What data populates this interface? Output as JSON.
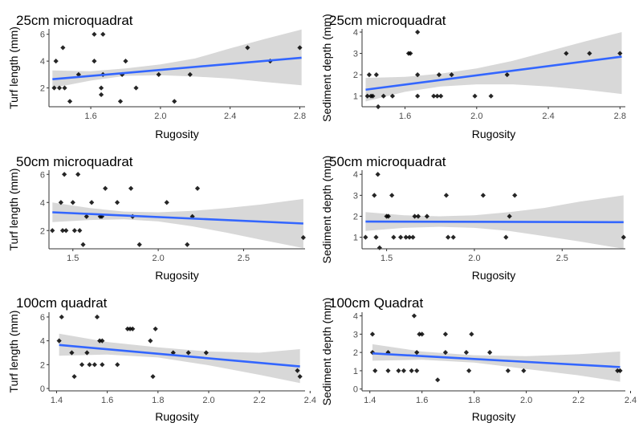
{
  "colors": {
    "points": "#000000",
    "line": "#3366FF",
    "band": "#d6d6d6",
    "axis": "#333333"
  },
  "chart_data": [
    {
      "type": "scatter",
      "title": "25cm microquadrat",
      "xlabel": "Rugosity",
      "ylabel": "Turf length (mm)",
      "xlim": [
        1.36,
        2.83
      ],
      "ylim": [
        0.6,
        6.4
      ],
      "xticks": [
        1.6,
        2.0,
        2.4,
        2.8
      ],
      "xtick_labels": [
        "1.6",
        "2.0",
        "2.4",
        "2.8"
      ],
      "yticks": [
        2,
        4,
        6
      ],
      "ytick_labels": [
        "2",
        "4",
        "6"
      ],
      "points": [
        {
          "x": 1.39,
          "y": 2
        },
        {
          "x": 1.4,
          "y": 4
        },
        {
          "x": 1.42,
          "y": 2
        },
        {
          "x": 1.44,
          "y": 5
        },
        {
          "x": 1.45,
          "y": 2
        },
        {
          "x": 1.48,
          "y": 1
        },
        {
          "x": 1.53,
          "y": 3
        },
        {
          "x": 1.62,
          "y": 6
        },
        {
          "x": 1.62,
          "y": 4
        },
        {
          "x": 1.66,
          "y": 2
        },
        {
          "x": 1.66,
          "y": 1.5
        },
        {
          "x": 1.67,
          "y": 3
        },
        {
          "x": 1.67,
          "y": 6
        },
        {
          "x": 1.77,
          "y": 1
        },
        {
          "x": 1.78,
          "y": 3
        },
        {
          "x": 1.8,
          "y": 4
        },
        {
          "x": 1.86,
          "y": 2
        },
        {
          "x": 1.99,
          "y": 3
        },
        {
          "x": 2.08,
          "y": 1
        },
        {
          "x": 2.17,
          "y": 3
        },
        {
          "x": 2.5,
          "y": 5
        },
        {
          "x": 2.63,
          "y": 4
        },
        {
          "x": 2.8,
          "y": 5
        }
      ],
      "fit": {
        "x": [
          1.38,
          2.81
        ],
        "y": [
          2.65,
          4.25
        ]
      },
      "ci_lower": [
        [
          1.38,
          2.0
        ],
        [
          1.6,
          2.55
        ],
        [
          1.8,
          2.9
        ],
        [
          2.0,
          2.95
        ],
        [
          2.2,
          2.85
        ],
        [
          2.4,
          2.7
        ],
        [
          2.6,
          2.45
        ],
        [
          2.81,
          2.2
        ]
      ],
      "ci_upper": [
        [
          1.38,
          3.3
        ],
        [
          1.6,
          3.25
        ],
        [
          1.8,
          3.45
        ],
        [
          2.0,
          3.75
        ],
        [
          2.2,
          4.2
        ],
        [
          2.4,
          4.95
        ],
        [
          2.6,
          5.65
        ],
        [
          2.81,
          6.35
        ]
      ]
    },
    {
      "type": "scatter",
      "title": "25cm microquadrat",
      "xlabel": "Rugosity",
      "ylabel": "Sediment depth (mm)",
      "xlim": [
        1.36,
        2.83
      ],
      "ylim": [
        0.5,
        4.15
      ],
      "xticks": [
        1.6,
        2.0,
        2.4,
        2.8
      ],
      "xtick_labels": [
        "1.6",
        "2.0",
        "2.4",
        "2.8"
      ],
      "yticks": [
        1,
        2,
        3,
        4
      ],
      "ytick_labels": [
        "1",
        "2",
        "3",
        "4"
      ],
      "points": [
        {
          "x": 1.39,
          "y": 1
        },
        {
          "x": 1.4,
          "y": 2
        },
        {
          "x": 1.41,
          "y": 1
        },
        {
          "x": 1.42,
          "y": 1
        },
        {
          "x": 1.44,
          "y": 2
        },
        {
          "x": 1.45,
          "y": 0.5
        },
        {
          "x": 1.48,
          "y": 1
        },
        {
          "x": 1.53,
          "y": 1
        },
        {
          "x": 1.62,
          "y": 3
        },
        {
          "x": 1.63,
          "y": 3
        },
        {
          "x": 1.67,
          "y": 2
        },
        {
          "x": 1.67,
          "y": 1
        },
        {
          "x": 1.67,
          "y": 4
        },
        {
          "x": 1.76,
          "y": 1
        },
        {
          "x": 1.78,
          "y": 1
        },
        {
          "x": 1.79,
          "y": 2
        },
        {
          "x": 1.8,
          "y": 1
        },
        {
          "x": 1.86,
          "y": 2
        },
        {
          "x": 1.99,
          "y": 1
        },
        {
          "x": 2.08,
          "y": 1
        },
        {
          "x": 2.17,
          "y": 2
        },
        {
          "x": 2.5,
          "y": 3
        },
        {
          "x": 2.63,
          "y": 3
        },
        {
          "x": 2.8,
          "y": 3
        }
      ],
      "fit": {
        "x": [
          1.38,
          2.81
        ],
        "y": [
          1.3,
          2.85
        ]
      },
      "ci_lower": [
        [
          1.38,
          0.75
        ],
        [
          1.6,
          1.2
        ],
        [
          1.8,
          1.45
        ],
        [
          2.0,
          1.55
        ],
        [
          2.2,
          1.55
        ],
        [
          2.4,
          1.45
        ],
        [
          2.6,
          1.3
        ],
        [
          2.81,
          1.1
        ]
      ],
      "ci_upper": [
        [
          1.38,
          1.85
        ],
        [
          1.6,
          1.9
        ],
        [
          1.8,
          2.05
        ],
        [
          2.0,
          2.3
        ],
        [
          2.2,
          2.65
        ],
        [
          2.4,
          3.1
        ],
        [
          2.6,
          3.55
        ],
        [
          2.81,
          4.0
        ]
      ]
    },
    {
      "type": "scatter",
      "title": "50cm microquadrat",
      "xlabel": "Rugosity",
      "ylabel": "Turf length (mm)",
      "xlim": [
        1.36,
        2.86
      ],
      "ylim": [
        0.7,
        6.3
      ],
      "xticks": [
        1.5,
        2.0,
        2.5
      ],
      "xtick_labels": [
        "1.5",
        "2.0",
        "2.5"
      ],
      "yticks": [
        2,
        4,
        6
      ],
      "ytick_labels": [
        "2",
        "4",
        "6"
      ],
      "points": [
        {
          "x": 1.38,
          "y": 2
        },
        {
          "x": 1.43,
          "y": 4
        },
        {
          "x": 1.44,
          "y": 2
        },
        {
          "x": 1.45,
          "y": 6
        },
        {
          "x": 1.46,
          "y": 2
        },
        {
          "x": 1.5,
          "y": 4
        },
        {
          "x": 1.51,
          "y": 2
        },
        {
          "x": 1.53,
          "y": 6
        },
        {
          "x": 1.54,
          "y": 2
        },
        {
          "x": 1.56,
          "y": 1
        },
        {
          "x": 1.58,
          "y": 3
        },
        {
          "x": 1.61,
          "y": 4
        },
        {
          "x": 1.66,
          "y": 3
        },
        {
          "x": 1.67,
          "y": 3
        },
        {
          "x": 1.69,
          "y": 5
        },
        {
          "x": 1.76,
          "y": 4
        },
        {
          "x": 1.84,
          "y": 5
        },
        {
          "x": 1.85,
          "y": 3
        },
        {
          "x": 1.89,
          "y": 1
        },
        {
          "x": 2.05,
          "y": 4
        },
        {
          "x": 2.17,
          "y": 1
        },
        {
          "x": 2.2,
          "y": 3
        },
        {
          "x": 2.23,
          "y": 5
        },
        {
          "x": 2.85,
          "y": 1.5
        }
      ],
      "fit": {
        "x": [
          1.38,
          2.85
        ],
        "y": [
          3.3,
          2.5
        ]
      },
      "ci_lower": [
        [
          1.38,
          2.6
        ],
        [
          1.6,
          2.75
        ],
        [
          1.8,
          2.8
        ],
        [
          2.0,
          2.65
        ],
        [
          2.2,
          2.3
        ],
        [
          2.4,
          1.85
        ],
        [
          2.6,
          1.35
        ],
        [
          2.85,
          0.75
        ]
      ],
      "ci_upper": [
        [
          1.38,
          4.0
        ],
        [
          1.6,
          3.6
        ],
        [
          1.8,
          3.35
        ],
        [
          2.0,
          3.3
        ],
        [
          2.2,
          3.4
        ],
        [
          2.4,
          3.6
        ],
        [
          2.6,
          3.85
        ],
        [
          2.85,
          4.25
        ]
      ]
    },
    {
      "type": "scatter",
      "title": "50cm microquadrat",
      "xlabel": "Rugosity",
      "ylabel": "Sediment depth (mm)",
      "xlim": [
        1.36,
        2.86
      ],
      "ylim": [
        0.45,
        4.2
      ],
      "xticks": [
        1.5,
        2.0,
        2.5
      ],
      "xtick_labels": [
        "1.5",
        "2.0",
        "2.5"
      ],
      "yticks": [
        1,
        2,
        3,
        4
      ],
      "ytick_labels": [
        "1",
        "2",
        "3",
        "4"
      ],
      "points": [
        {
          "x": 1.38,
          "y": 1
        },
        {
          "x": 1.43,
          "y": 3
        },
        {
          "x": 1.44,
          "y": 1
        },
        {
          "x": 1.45,
          "y": 4
        },
        {
          "x": 1.46,
          "y": 0.5
        },
        {
          "x": 1.5,
          "y": 2
        },
        {
          "x": 1.51,
          "y": 2
        },
        {
          "x": 1.53,
          "y": 3
        },
        {
          "x": 1.54,
          "y": 1
        },
        {
          "x": 1.58,
          "y": 1
        },
        {
          "x": 1.61,
          "y": 1
        },
        {
          "x": 1.63,
          "y": 1
        },
        {
          "x": 1.65,
          "y": 1
        },
        {
          "x": 1.66,
          "y": 2
        },
        {
          "x": 1.68,
          "y": 2
        },
        {
          "x": 1.73,
          "y": 2
        },
        {
          "x": 1.84,
          "y": 3
        },
        {
          "x": 1.85,
          "y": 1
        },
        {
          "x": 1.88,
          "y": 1
        },
        {
          "x": 2.05,
          "y": 3
        },
        {
          "x": 2.18,
          "y": 1
        },
        {
          "x": 2.2,
          "y": 2
        },
        {
          "x": 2.23,
          "y": 3
        },
        {
          "x": 2.85,
          "y": 1
        }
      ],
      "fit": {
        "x": [
          1.38,
          2.85
        ],
        "y": [
          1.75,
          1.72
        ]
      },
      "ci_lower": [
        [
          1.38,
          1.3
        ],
        [
          1.6,
          1.45
        ],
        [
          1.8,
          1.5
        ],
        [
          2.0,
          1.45
        ],
        [
          2.2,
          1.3
        ],
        [
          2.4,
          1.05
        ],
        [
          2.6,
          0.8
        ],
        [
          2.85,
          0.45
        ]
      ],
      "ci_upper": [
        [
          1.38,
          2.2
        ],
        [
          1.6,
          2.05
        ],
        [
          1.8,
          2.0
        ],
        [
          2.0,
          2.05
        ],
        [
          2.2,
          2.2
        ],
        [
          2.4,
          2.4
        ],
        [
          2.6,
          2.7
        ],
        [
          2.85,
          3.0
        ]
      ]
    },
    {
      "type": "scatter",
      "title": "100cm quadrat",
      "xlabel": "Rugosity",
      "ylabel": "Turf length (mm)",
      "xlim": [
        1.37,
        2.38
      ],
      "ylim": [
        -0.2,
        6.4
      ],
      "xticks": [
        1.4,
        1.6,
        1.8,
        2.0,
        2.2,
        2.4
      ],
      "xtick_labels": [
        "1.4",
        "1.6",
        "1.8",
        "2.0",
        "2.2",
        "2.4"
      ],
      "yticks": [
        0,
        2,
        4,
        6
      ],
      "ytick_labels": [
        "0",
        "2",
        "4",
        "6"
      ],
      "points": [
        {
          "x": 1.41,
          "y": 4
        },
        {
          "x": 1.42,
          "y": 6
        },
        {
          "x": 1.46,
          "y": 3
        },
        {
          "x": 1.47,
          "y": 1
        },
        {
          "x": 1.5,
          "y": 2
        },
        {
          "x": 1.52,
          "y": 3
        },
        {
          "x": 1.53,
          "y": 2
        },
        {
          "x": 1.55,
          "y": 2
        },
        {
          "x": 1.56,
          "y": 6
        },
        {
          "x": 1.57,
          "y": 4
        },
        {
          "x": 1.58,
          "y": 4
        },
        {
          "x": 1.58,
          "y": 2
        },
        {
          "x": 1.64,
          "y": 2
        },
        {
          "x": 1.68,
          "y": 5
        },
        {
          "x": 1.69,
          "y": 5
        },
        {
          "x": 1.7,
          "y": 5
        },
        {
          "x": 1.77,
          "y": 4
        },
        {
          "x": 1.78,
          "y": 1
        },
        {
          "x": 1.79,
          "y": 5
        },
        {
          "x": 1.86,
          "y": 3
        },
        {
          "x": 1.92,
          "y": 3
        },
        {
          "x": 1.99,
          "y": 3
        },
        {
          "x": 2.35,
          "y": 1.5
        },
        {
          "x": 2.36,
          "y": 1
        }
      ],
      "fit": {
        "x": [
          1.41,
          2.36
        ],
        "y": [
          3.65,
          1.85
        ]
      },
      "ci_lower": [
        [
          1.41,
          2.75
        ],
        [
          1.6,
          2.85
        ],
        [
          1.8,
          2.6
        ],
        [
          2.0,
          1.95
        ],
        [
          2.2,
          1.15
        ],
        [
          2.36,
          0.45
        ]
      ],
      "ci_upper": [
        [
          1.41,
          4.6
        ],
        [
          1.6,
          3.9
        ],
        [
          1.8,
          3.45
        ],
        [
          2.0,
          3.1
        ],
        [
          2.2,
          3.0
        ],
        [
          2.36,
          3.3
        ]
      ]
    },
    {
      "type": "scatter",
      "title": "100cm Quadrat",
      "xlabel": "Rugosity",
      "ylabel": "Sediment depth (mm)",
      "xlim": [
        1.37,
        2.38
      ],
      "ylim": [
        -0.1,
        4.2
      ],
      "xticks": [
        1.4,
        1.6,
        1.8,
        2.0,
        2.2,
        2.4
      ],
      "xtick_labels": [
        "1.4",
        "1.6",
        "1.8",
        "2.0",
        "2.2",
        "2.4"
      ],
      "yticks": [
        0,
        1,
        2,
        3,
        4
      ],
      "ytick_labels": [
        "0",
        "1",
        "2",
        "3",
        "4"
      ],
      "points": [
        {
          "x": 1.41,
          "y": 2
        },
        {
          "x": 1.41,
          "y": 3
        },
        {
          "x": 1.42,
          "y": 1
        },
        {
          "x": 1.47,
          "y": 1
        },
        {
          "x": 1.47,
          "y": 2
        },
        {
          "x": 1.51,
          "y": 1
        },
        {
          "x": 1.53,
          "y": 1
        },
        {
          "x": 1.56,
          "y": 1
        },
        {
          "x": 1.57,
          "y": 4
        },
        {
          "x": 1.58,
          "y": 1
        },
        {
          "x": 1.58,
          "y": 2
        },
        {
          "x": 1.59,
          "y": 3
        },
        {
          "x": 1.6,
          "y": 3
        },
        {
          "x": 1.66,
          "y": 0.5
        },
        {
          "x": 1.69,
          "y": 2
        },
        {
          "x": 1.69,
          "y": 3
        },
        {
          "x": 1.77,
          "y": 2
        },
        {
          "x": 1.78,
          "y": 1
        },
        {
          "x": 1.79,
          "y": 3
        },
        {
          "x": 1.86,
          "y": 2
        },
        {
          "x": 1.93,
          "y": 1
        },
        {
          "x": 1.99,
          "y": 1
        },
        {
          "x": 2.35,
          "y": 1
        },
        {
          "x": 2.36,
          "y": 1
        }
      ],
      "fit": {
        "x": [
          1.41,
          2.36
        ],
        "y": [
          1.95,
          1.2
        ]
      },
      "ci_lower": [
        [
          1.41,
          1.55
        ],
        [
          1.6,
          1.6
        ],
        [
          1.8,
          1.45
        ],
        [
          2.0,
          1.1
        ],
        [
          2.2,
          0.75
        ],
        [
          2.36,
          0.4
        ]
      ],
      "ci_upper": [
        [
          1.41,
          2.45
        ],
        [
          1.6,
          2.05
        ],
        [
          1.8,
          1.85
        ],
        [
          2.0,
          1.8
        ],
        [
          2.2,
          1.9
        ],
        [
          2.36,
          2.05
        ]
      ]
    }
  ]
}
